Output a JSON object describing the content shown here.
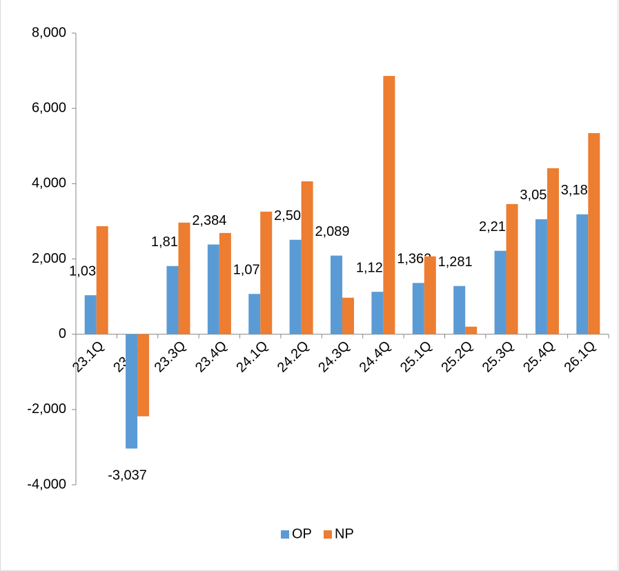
{
  "chart_data": {
    "type": "bar",
    "categories": [
      "23.1Q",
      "23.2Q",
      "23.3Q",
      "23.4Q",
      "24.1Q",
      "24.2Q",
      "24.3Q",
      "24.4Q",
      "25.1Q",
      "25.2Q",
      "25.3Q",
      "25.4Q",
      "26.1Q"
    ],
    "series": [
      {
        "name": "OP",
        "color": "#5b9bd5",
        "values": [
          1036,
          -3037,
          1812,
          2384,
          1071,
          2509,
          2089,
          1127,
          1362,
          1281,
          2216,
          3055,
          3186
        ],
        "value_labels": [
          "1,036",
          "-3,037",
          "1,812",
          "2,384",
          "1,071",
          "2,509",
          "2,089",
          "1,127",
          "1,362",
          "1,281",
          "2,216",
          "3,055",
          "3,186"
        ]
      },
      {
        "name": "NP",
        "color": "#ed7d31",
        "values": [
          2870,
          -2180,
          2965,
          2690,
          3257,
          4062,
          970,
          6862,
          2068,
          201,
          3459,
          4410,
          5343
        ]
      }
    ],
    "ylim": [
      -4000,
      8000
    ],
    "yticks": [
      {
        "value": -4000,
        "label": "-4,000"
      },
      {
        "value": -2000,
        "label": "-2,000"
      },
      0,
      {
        "value": 2000,
        "label": "2,000"
      },
      {
        "value": 4000,
        "label": "4,000"
      },
      {
        "value": 6000,
        "label": "6,000"
      },
      {
        "value": 8000,
        "label": "8,000"
      }
    ],
    "grid": false,
    "legend": "bottom"
  }
}
